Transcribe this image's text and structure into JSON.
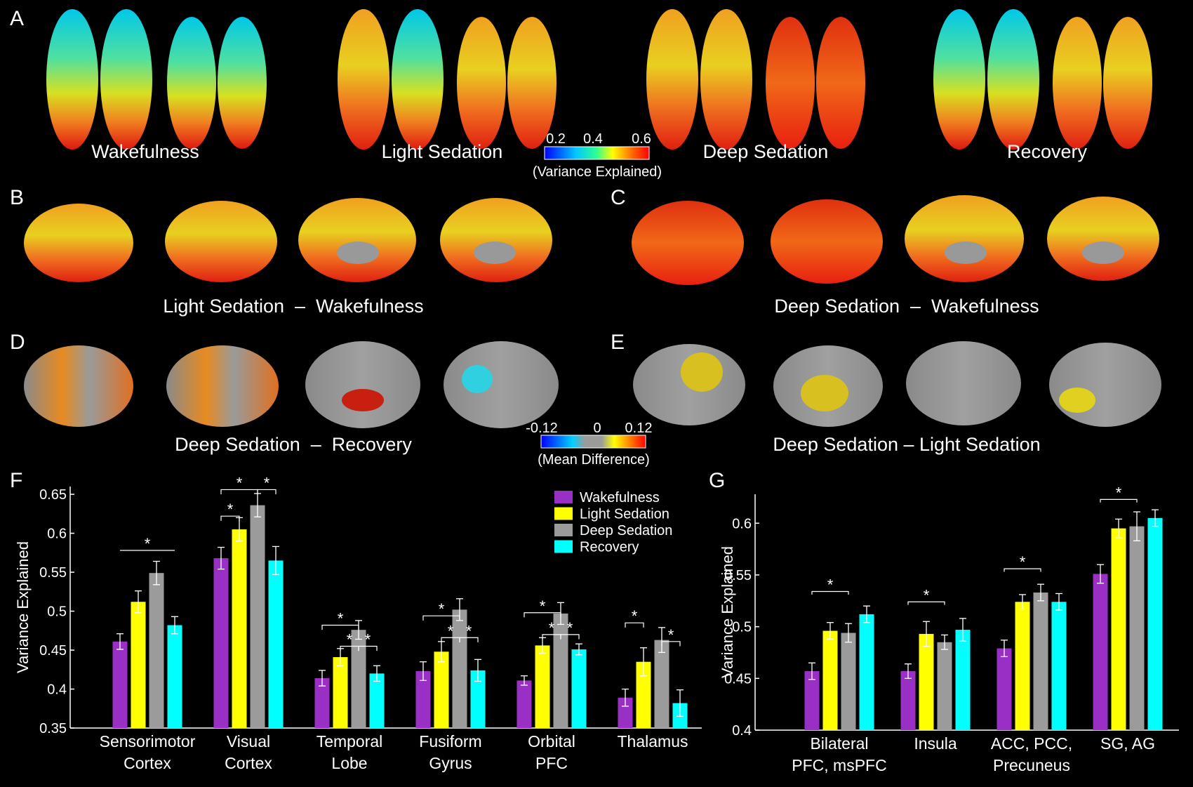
{
  "panels": {
    "A": {
      "letter": "A",
      "labels": [
        "Wakefulness",
        "Light Sedation",
        "Deep Sedation",
        "Recovery"
      ]
    },
    "B": {
      "letter": "B",
      "label": "Light Sedation  –  Wakefulness"
    },
    "C": {
      "letter": "C",
      "label": "Deep Sedation  –  Wakefulness"
    },
    "D": {
      "letter": "D",
      "label": "Deep Sedation  –  Recovery"
    },
    "E": {
      "letter": "E",
      "label": "Deep Sedation – Light Sedation"
    },
    "F": {
      "letter": "F"
    },
    "G": {
      "letter": "G"
    }
  },
  "colorbars": {
    "variance": {
      "ticks": [
        "0.2",
        "0.4",
        "0.6"
      ],
      "label": "(Variance Explained)"
    },
    "difference": {
      "ticks": [
        "-0.12",
        "0",
        "0.12"
      ],
      "label": "(Mean Difference)"
    }
  },
  "colors": {
    "Wakefulness": "#9a2fc6",
    "Light Sedation": "#ffff00",
    "Deep Sedation": "#9b9b9b",
    "Recovery": "#00ffff"
  },
  "chart_data": [
    {
      "panel": "F",
      "type": "bar",
      "categories": [
        "Sensorimotor\nCortex",
        "Visual\nCortex",
        "Temporal\nLobe",
        "Fusiform\nGyrus",
        "Orbital\nPFC",
        "Thalamus"
      ],
      "ylabel": "Variance Explained",
      "ylim": [
        0.35,
        0.66
      ],
      "yticks": [
        "0.35",
        "0.4",
        "0.45",
        "0.5",
        "0.55",
        "0.6",
        "0.65"
      ],
      "legend_position": "top-right",
      "series": [
        {
          "name": "Wakefulness",
          "values": [
            0.461,
            0.568,
            0.414,
            0.423,
            0.411,
            0.389
          ],
          "errors": [
            0.01,
            0.014,
            0.01,
            0.012,
            0.006,
            0.011
          ]
        },
        {
          "name": "Light Sedation",
          "values": [
            0.512,
            0.605,
            0.441,
            0.448,
            0.456,
            0.435
          ],
          "errors": [
            0.014,
            0.015,
            0.011,
            0.013,
            0.01,
            0.018
          ]
        },
        {
          "name": "Deep Sedation",
          "values": [
            0.549,
            0.636,
            0.476,
            0.502,
            0.497,
            0.463
          ],
          "errors": [
            0.015,
            0.015,
            0.012,
            0.014,
            0.014,
            0.016
          ]
        },
        {
          "name": "Recovery",
          "values": [
            0.482,
            0.565,
            0.42,
            0.424,
            0.451,
            0.382
          ],
          "errors": [
            0.011,
            0.018,
            0.01,
            0.014,
            0.007,
            0.017
          ]
        }
      ],
      "significance_label": "*"
    },
    {
      "panel": "G",
      "type": "bar",
      "categories": [
        "Bilateral\nPFC, msPFC",
        "Insula",
        "ACC, PCC,\nPrecuneus",
        "SG, AG"
      ],
      "ylabel": "Variance Explained",
      "ylim": [
        0.4,
        0.628
      ],
      "yticks": [
        "0.4",
        "0.45",
        "0.5",
        "0.55",
        "0.6"
      ],
      "series": [
        {
          "name": "Wakefulness",
          "values": [
            0.457,
            0.457,
            0.479,
            0.551
          ],
          "errors": [
            0.008,
            0.007,
            0.008,
            0.009
          ]
        },
        {
          "name": "Light Sedation",
          "values": [
            0.496,
            0.493,
            0.524,
            0.595
          ],
          "errors": [
            0.008,
            0.012,
            0.007,
            0.009
          ]
        },
        {
          "name": "Deep Sedation",
          "values": [
            0.494,
            0.485,
            0.533,
            0.597
          ],
          "errors": [
            0.009,
            0.007,
            0.008,
            0.014
          ]
        },
        {
          "name": "Recovery",
          "values": [
            0.512,
            0.497,
            0.524,
            0.605
          ],
          "errors": [
            0.008,
            0.011,
            0.008,
            0.008
          ]
        }
      ],
      "significance_label": "*"
    }
  ]
}
